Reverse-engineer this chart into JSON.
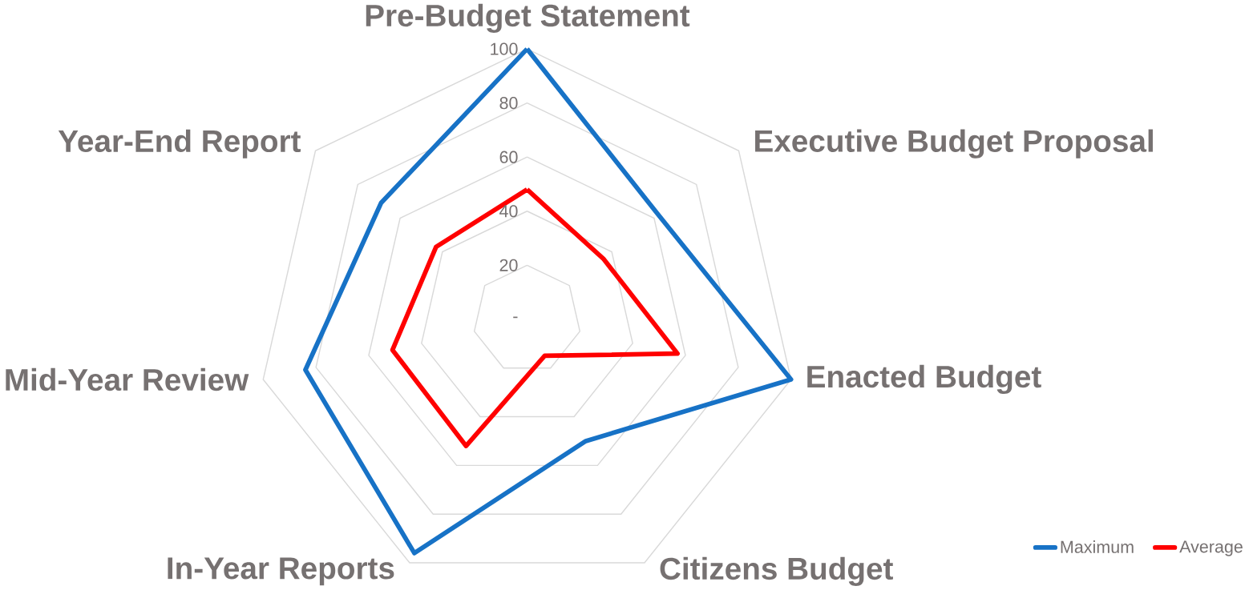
{
  "chart_data": {
    "type": "radar",
    "categories": [
      "Pre-Budget Statement",
      "Executive Budget Proposal",
      "Enacted Budget",
      "Citizens Budget",
      "In-Year Reports",
      "Mid-Year Review",
      "Year-End Report"
    ],
    "series": [
      {
        "name": "Maximum",
        "color": "#1772c6",
        "values": [
          100,
          62,
          100,
          50,
          96,
          84,
          69
        ]
      },
      {
        "name": "Average",
        "color": "#ff0000",
        "values": [
          48,
          36,
          57,
          15,
          52,
          51,
          43
        ]
      }
    ],
    "ylim": [
      0,
      100
    ],
    "yticks": [
      {
        "value": 0,
        "label": "-"
      },
      20,
      40,
      60,
      80,
      100
    ],
    "grid": true,
    "legend": "bottom right"
  }
}
